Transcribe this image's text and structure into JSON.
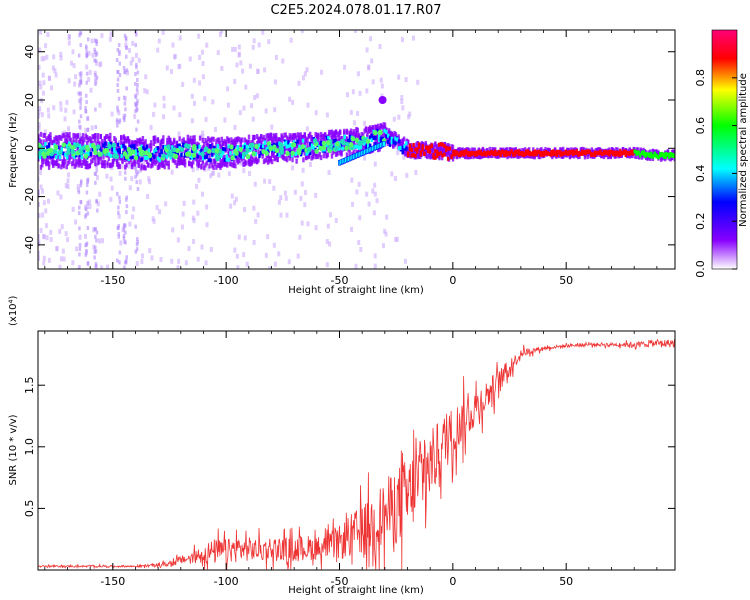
{
  "title": "C2E5.2024.078.01.17.R07",
  "chart_data": [
    {
      "type": "heatmap",
      "xlabel": "Height of straight line (km)",
      "ylabel": "Frequency (Hz)",
      "xlim": [
        -183,
        98
      ],
      "ylim": [
        -50,
        49
      ],
      "x_ticks": [
        -150,
        -100,
        -50,
        0,
        50
      ],
      "y_ticks": [
        -40,
        -20,
        0,
        20,
        40
      ],
      "colorbar": {
        "label": "Normalized spectral amplitude",
        "range": [
          0,
          1
        ],
        "ticks": [
          0.0,
          0.2,
          0.4,
          0.6,
          0.8
        ],
        "colormap": [
          "#ffffff",
          "#8800ff",
          "#0000ff",
          "#00ffff",
          "#00ff00",
          "#ffff00",
          "#ff0000",
          "#ff0077"
        ]
      },
      "ridge": {
        "x": [
          -183,
          -170,
          -160,
          -150,
          -140,
          -130,
          -120,
          -110,
          -100,
          -90,
          -80,
          -70,
          -60,
          -50,
          -40,
          -35,
          -30,
          -25,
          -20,
          -15,
          -10,
          -5,
          0,
          10,
          20,
          30,
          40,
          50,
          60,
          70,
          80,
          90,
          98
        ],
        "y": [
          -1,
          -1,
          -1,
          -1,
          -2,
          -2,
          -1,
          -2,
          -2,
          -1,
          0,
          0,
          1,
          2,
          3,
          4,
          5,
          3,
          0,
          -1,
          -1,
          -1,
          -2,
          -2,
          -2,
          -2,
          -2,
          -2,
          -2,
          -2,
          -2,
          -3,
          -3
        ]
      },
      "secondary_ridge": {
        "x": [
          -50,
          -45,
          -40,
          -35,
          -30
        ],
        "y": [
          -6,
          -4,
          -2,
          0,
          2
        ]
      },
      "blob": {
        "x": -31,
        "y": 20
      }
    },
    {
      "type": "line",
      "xlabel": "Height of straight line (km)",
      "ylabel": "SNR (10 * v/v)",
      "y_multiplier": "(x10⁴)",
      "xlim": [
        -183,
        98
      ],
      "ylim": [
        0,
        1.94
      ],
      "x_ticks": [
        -150,
        -100,
        -50,
        0,
        50
      ],
      "y_ticks": [
        0.5,
        1.0,
        1.5
      ],
      "y_tick_labels": [
        "0.5",
        "1.0",
        "1.5"
      ],
      "color": "#ee3333",
      "series": [
        {
          "x": [
            -183,
            -170,
            -160,
            -150,
            -140,
            -130,
            -125,
            -120,
            -115,
            -110,
            -105,
            -100,
            -95,
            -90,
            -85,
            -80,
            -75,
            -70,
            -65,
            -60,
            -55,
            -50,
            -45,
            -40,
            -35,
            -30,
            -25,
            -20,
            -15,
            -10,
            -5,
            0,
            5,
            10,
            15,
            20,
            25,
            30,
            40,
            50,
            60,
            70,
            80,
            90,
            98
          ],
          "values": [
            0.03,
            0.03,
            0.03,
            0.03,
            0.03,
            0.04,
            0.05,
            0.08,
            0.1,
            0.13,
            0.15,
            0.15,
            0.17,
            0.17,
            0.16,
            0.18,
            0.17,
            0.17,
            0.18,
            0.18,
            0.19,
            0.22,
            0.28,
            0.32,
            0.38,
            0.45,
            0.52,
            0.6,
            0.72,
            0.85,
            1.0,
            1.12,
            1.22,
            1.32,
            1.42,
            1.52,
            1.64,
            1.76,
            1.8,
            1.82,
            1.83,
            1.83,
            1.83,
            1.84,
            1.84
          ],
          "noise_amplitude": [
            0.01,
            0.01,
            0.01,
            0.01,
            0.01,
            0.02,
            0.03,
            0.05,
            0.06,
            0.12,
            0.15,
            0.14,
            0.15,
            0.14,
            0.13,
            0.14,
            0.13,
            0.14,
            0.15,
            0.14,
            0.14,
            0.2,
            0.25,
            0.3,
            0.35,
            0.4,
            0.45,
            0.45,
            0.45,
            0.4,
            0.35,
            0.3,
            0.26,
            0.22,
            0.18,
            0.15,
            0.1,
            0.05,
            0.02,
            0.02,
            0.02,
            0.02,
            0.03,
            0.04,
            0.05
          ]
        }
      ]
    }
  ]
}
